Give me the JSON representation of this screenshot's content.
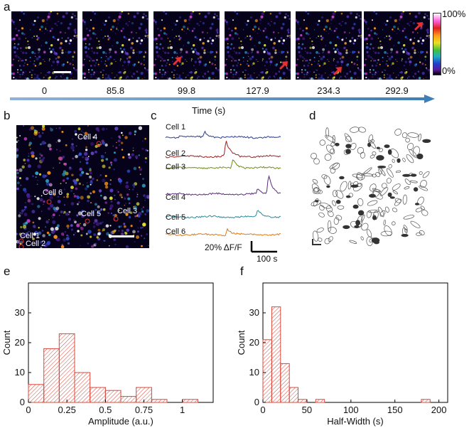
{
  "panels": {
    "a": "a",
    "b": "b",
    "c": "c",
    "d": "d",
    "e": "e",
    "f": "f"
  },
  "panel_a": {
    "time_labels": [
      "0",
      "85.8",
      "99.8",
      "127.9",
      "234.3",
      "292.9"
    ],
    "axis_label": "Time (s)",
    "colorbar_max": "100%",
    "colorbar_min": "0%"
  },
  "panel_b": {
    "cells": [
      "Cell 4",
      "Cell 6",
      "Cell 5",
      "Cell 3",
      "Cell 1",
      "Cell 2"
    ]
  },
  "panel_c": {
    "traces": [
      {
        "name": "Cell 1",
        "color": "#2b3a8f"
      },
      {
        "name": "Cell 2",
        "color": "#9b2020"
      },
      {
        "name": "Cell 3",
        "color": "#6f8a1c"
      },
      {
        "name": "Cell 4",
        "color": "#5a2a7a"
      },
      {
        "name": "Cell 5",
        "color": "#2a8a9a"
      },
      {
        "name": "Cell 6",
        "color": "#d97a1a"
      }
    ],
    "scale_y": "20% ΔF/F",
    "scale_x": "100 s"
  },
  "chart_data": [
    {
      "type": "bar",
      "panel": "e",
      "xlabel": "Amplitude (a.u.)",
      "ylabel": "Count",
      "bin_edges": [
        0,
        0.1,
        0.2,
        0.3,
        0.4,
        0.5,
        0.6,
        0.7,
        0.8,
        0.9,
        1.0,
        1.1
      ],
      "values": [
        6,
        18,
        23,
        10,
        5,
        4,
        2,
        5,
        1,
        0,
        1
      ],
      "xlim": [
        0,
        1.2
      ],
      "ylim": [
        0,
        40
      ],
      "xticks": [
        "0",
        "0.25",
        "0.5",
        "0.75",
        "1"
      ],
      "xtick_values": [
        0,
        0.25,
        0.5,
        0.75,
        1
      ],
      "yticks": [
        "0",
        "10",
        "20",
        "30"
      ],
      "ytick_values": [
        0,
        10,
        20,
        30
      ],
      "color": "#d9483b"
    },
    {
      "type": "bar",
      "panel": "f",
      "xlabel": "Half-Width (s)",
      "ylabel": "Count",
      "bin_edges": [
        0,
        10,
        20,
        30,
        40,
        50,
        60,
        70,
        80,
        90,
        100,
        110,
        120,
        130,
        140,
        150,
        160,
        170,
        180,
        190,
        200
      ],
      "values": [
        21,
        32,
        13,
        5,
        1,
        0,
        1,
        0,
        0,
        0,
        0,
        0,
        0,
        0,
        0,
        0,
        0,
        0,
        1,
        0
      ],
      "xlim": [
        0,
        210
      ],
      "ylim": [
        0,
        40
      ],
      "xticks": [
        "0",
        "50",
        "100",
        "150",
        "200"
      ],
      "xtick_values": [
        0,
        50,
        100,
        150,
        200
      ],
      "yticks": [
        "0",
        "10",
        "20",
        "30"
      ],
      "ytick_values": [
        0,
        10,
        20,
        30
      ],
      "color": "#d9483b"
    }
  ]
}
